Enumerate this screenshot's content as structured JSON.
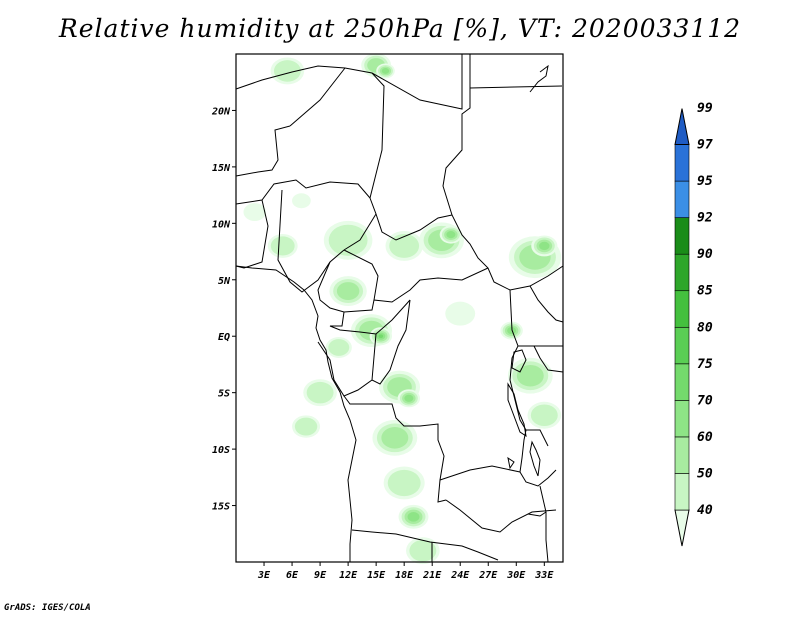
{
  "title": "Relative humidity at 250hPa [%], VT: 2020033112",
  "credit": "GrADS: IGES/COLA",
  "map": {
    "lon_range": [
      0,
      35
    ],
    "lat_range": [
      -20,
      25
    ],
    "lat_labels": [
      "20N",
      "15N",
      "10N",
      "5N",
      "EQ",
      "5S",
      "10S",
      "15S"
    ],
    "lon_labels": [
      "3E",
      "6E",
      "9E",
      "12E",
      "15E",
      "18E",
      "21E",
      "24E",
      "27E",
      "30E",
      "33E"
    ]
  },
  "colorbar": {
    "levels": [
      "40",
      "50",
      "60",
      "70",
      "75",
      "80",
      "85",
      "90",
      "92",
      "95",
      "97",
      "99"
    ],
    "colors": [
      "#e8fce8",
      "#c8f5c4",
      "#a8eca0",
      "#8ee486",
      "#74da6c",
      "#5ace54",
      "#44c03e",
      "#2ea62a",
      "#1a8c18",
      "#3b8fe6",
      "#2a72d8",
      "#1f5cc4"
    ]
  },
  "humidity_patches": [
    {
      "lon": 5.5,
      "lat": 23.5,
      "r": 1.8,
      "level": 1
    },
    {
      "lon": 15,
      "lat": 24,
      "r": 1.6,
      "level": 2
    },
    {
      "lon": 16,
      "lat": 23.5,
      "r": 1.0,
      "level": 3
    },
    {
      "lon": 12,
      "lat": 8.5,
      "r": 2.6,
      "level": 1
    },
    {
      "lon": 5,
      "lat": 8,
      "r": 1.6,
      "level": 1
    },
    {
      "lon": 18,
      "lat": 8,
      "r": 2.0,
      "level": 1
    },
    {
      "lon": 22,
      "lat": 8.5,
      "r": 2.4,
      "level": 2
    },
    {
      "lon": 23,
      "lat": 9,
      "r": 1.2,
      "level": 3
    },
    {
      "lon": 32,
      "lat": 7,
      "r": 2.8,
      "level": 2
    },
    {
      "lon": 33,
      "lat": 8,
      "r": 1.4,
      "level": 3
    },
    {
      "lon": 12,
      "lat": 4,
      "r": 2.0,
      "level": 2
    },
    {
      "lon": 14.5,
      "lat": 0.5,
      "r": 2.2,
      "level": 2
    },
    {
      "lon": 15.5,
      "lat": 0,
      "r": 1.2,
      "level": 4
    },
    {
      "lon": 11,
      "lat": -1,
      "r": 1.4,
      "level": 1
    },
    {
      "lon": 17.5,
      "lat": -4.5,
      "r": 2.2,
      "level": 2
    },
    {
      "lon": 18.5,
      "lat": -5.5,
      "r": 1.2,
      "level": 3
    },
    {
      "lon": 17,
      "lat": -9,
      "r": 2.4,
      "level": 2
    },
    {
      "lon": 18,
      "lat": -13,
      "r": 2.2,
      "level": 1
    },
    {
      "lon": 19,
      "lat": -16,
      "r": 1.6,
      "level": 3
    },
    {
      "lon": 20,
      "lat": -19,
      "r": 1.8,
      "level": 1
    },
    {
      "lon": 9,
      "lat": -5,
      "r": 1.8,
      "level": 1
    },
    {
      "lon": 7.5,
      "lat": -8,
      "r": 1.5,
      "level": 1
    },
    {
      "lon": 31.5,
      "lat": -3.5,
      "r": 2.4,
      "level": 2
    },
    {
      "lon": 33,
      "lat": -7,
      "r": 1.8,
      "level": 1
    },
    {
      "lon": 29.5,
      "lat": 0.5,
      "r": 1.2,
      "level": 3
    },
    {
      "lon": 24,
      "lat": 2,
      "r": 1.6,
      "level": 0
    },
    {
      "lon": 2,
      "lat": 11,
      "r": 1.2,
      "level": 0
    },
    {
      "lon": 7,
      "lat": 12,
      "r": 1.0,
      "level": 0
    }
  ]
}
